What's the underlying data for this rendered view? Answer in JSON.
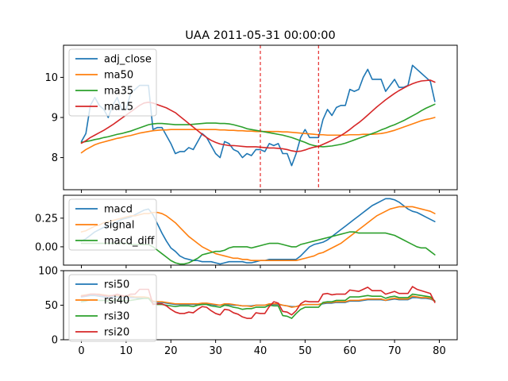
{
  "figure": {
    "title": "UAA 2011-05-31 00:00:00",
    "colors": {
      "blue": "#1f77b4",
      "orange": "#ff7f0e",
      "green": "#2ca02c",
      "red": "#d62728",
      "vline": "#e00000"
    }
  },
  "chart_data": [
    {
      "type": "line",
      "panel": "price",
      "title": "UAA 2011-05-31 00:00:00",
      "xlabel": "",
      "ylabel": "",
      "xlim": [
        -4,
        84
      ],
      "ylim": [
        7.2,
        10.8
      ],
      "yticks": [
        8,
        9,
        10
      ],
      "ytick_labels": [
        "8",
        "9",
        "10"
      ],
      "vlines": [
        40,
        53
      ],
      "legend": "top-left",
      "grid": false,
      "series": [
        {
          "name": "adj_close",
          "color": "#1f77b4",
          "values": [
            8.4,
            8.6,
            9.3,
            9.5,
            9.3,
            9.2,
            9.0,
            9.3,
            9.5,
            9.2,
            9.2,
            9.6,
            9.7,
            9.8,
            9.8,
            9.8,
            8.7,
            8.75,
            8.75,
            8.55,
            8.35,
            8.1,
            8.15,
            8.15,
            8.25,
            8.2,
            8.4,
            8.6,
            8.5,
            8.3,
            8.1,
            8.0,
            8.4,
            8.35,
            8.2,
            8.15,
            8.0,
            8.1,
            8.05,
            8.2,
            8.2,
            8.15,
            8.35,
            8.3,
            8.35,
            8.1,
            8.1,
            7.8,
            8.1,
            8.5,
            8.7,
            8.5,
            8.5,
            8.5,
            8.95,
            9.2,
            9.05,
            9.25,
            9.3,
            9.3,
            9.7,
            9.65,
            9.7,
            10.0,
            10.2,
            9.95,
            9.95,
            9.95,
            9.65,
            9.8,
            9.95,
            9.75,
            9.75,
            9.8,
            10.3,
            10.2,
            10.1,
            10.0,
            9.9,
            9.4
          ]
        },
        {
          "name": "ma50",
          "color": "#ff7f0e",
          "values": [
            8.12,
            8.2,
            8.26,
            8.32,
            8.36,
            8.39,
            8.42,
            8.45,
            8.48,
            8.5,
            8.53,
            8.55,
            8.58,
            8.61,
            8.63,
            8.65,
            8.67,
            8.68,
            8.69,
            8.69,
            8.7,
            8.7,
            8.7,
            8.7,
            8.7,
            8.7,
            8.7,
            8.7,
            8.7,
            8.7,
            8.7,
            8.69,
            8.69,
            8.68,
            8.68,
            8.67,
            8.67,
            8.66,
            8.66,
            8.65,
            8.65,
            8.65,
            8.65,
            8.65,
            8.65,
            8.64,
            8.64,
            8.63,
            8.62,
            8.61,
            8.6,
            8.59,
            8.58,
            8.57,
            8.57,
            8.56,
            8.56,
            8.56,
            8.56,
            8.56,
            8.57,
            8.57,
            8.57,
            8.58,
            8.58,
            8.58,
            8.59,
            8.6,
            8.62,
            8.65,
            8.68,
            8.72,
            8.76,
            8.8,
            8.84,
            8.88,
            8.92,
            8.95,
            8.97,
            9.0
          ]
        },
        {
          "name": "ma35",
          "color": "#2ca02c",
          "values": [
            8.38,
            8.4,
            8.42,
            8.45,
            8.47,
            8.5,
            8.52,
            8.55,
            8.58,
            8.6,
            8.63,
            8.66,
            8.7,
            8.74,
            8.78,
            8.82,
            8.84,
            8.85,
            8.85,
            8.84,
            8.83,
            8.82,
            8.82,
            8.82,
            8.82,
            8.83,
            8.84,
            8.85,
            8.86,
            8.86,
            8.86,
            8.85,
            8.85,
            8.84,
            8.82,
            8.79,
            8.76,
            8.72,
            8.7,
            8.68,
            8.66,
            8.64,
            8.62,
            8.6,
            8.58,
            8.56,
            8.53,
            8.5,
            8.46,
            8.42,
            8.38,
            8.33,
            8.3,
            8.28,
            8.27,
            8.28,
            8.29,
            8.31,
            8.33,
            8.36,
            8.4,
            8.44,
            8.48,
            8.52,
            8.56,
            8.6,
            8.64,
            8.69,
            8.73,
            8.78,
            8.82,
            8.87,
            8.92,
            8.98,
            9.04,
            9.1,
            9.17,
            9.23,
            9.28,
            9.33
          ]
        },
        {
          "name": "ma15",
          "color": "#d62728",
          "values": [
            8.36,
            8.42,
            8.5,
            8.56,
            8.62,
            8.68,
            8.75,
            8.82,
            8.9,
            8.98,
            9.06,
            9.14,
            9.22,
            9.3,
            9.36,
            9.38,
            9.36,
            9.32,
            9.28,
            9.24,
            9.18,
            9.12,
            9.03,
            8.94,
            8.85,
            8.76,
            8.67,
            8.58,
            8.5,
            8.43,
            8.38,
            8.34,
            8.32,
            8.3,
            8.3,
            8.29,
            8.28,
            8.27,
            8.27,
            8.27,
            8.26,
            8.25,
            8.24,
            8.24,
            8.23,
            8.22,
            8.2,
            8.17,
            8.15,
            8.16,
            8.19,
            8.23,
            8.26,
            8.28,
            8.33,
            8.38,
            8.43,
            8.49,
            8.55,
            8.62,
            8.7,
            8.79,
            8.87,
            8.96,
            9.06,
            9.16,
            9.26,
            9.35,
            9.44,
            9.52,
            9.6,
            9.67,
            9.73,
            9.79,
            9.84,
            9.88,
            9.91,
            9.92,
            9.93,
            9.88
          ]
        }
      ]
    },
    {
      "type": "line",
      "panel": "macd",
      "xlabel": "",
      "ylabel": "",
      "xlim": [
        -4,
        84
      ],
      "ylim": [
        -0.16,
        0.45
      ],
      "yticks": [
        0.25,
        0.0
      ],
      "ytick_labels": [
        "0.25",
        "0.00"
      ],
      "legend": "top-left",
      "grid": false,
      "series": [
        {
          "name": "macd",
          "color": "#1f77b4",
          "values": [
            0.05,
            0.07,
            0.1,
            0.13,
            0.15,
            0.17,
            0.18,
            0.2,
            0.22,
            0.24,
            0.25,
            0.26,
            0.28,
            0.3,
            0.32,
            0.33,
            0.28,
            0.2,
            0.12,
            0.05,
            -0.01,
            -0.04,
            -0.08,
            -0.1,
            -0.11,
            -0.12,
            -0.12,
            -0.13,
            -0.13,
            -0.13,
            -0.14,
            -0.15,
            -0.14,
            -0.13,
            -0.13,
            -0.13,
            -0.13,
            -0.14,
            -0.14,
            -0.13,
            -0.12,
            -0.12,
            -0.11,
            -0.11,
            -0.11,
            -0.11,
            -0.11,
            -0.11,
            -0.11,
            -0.08,
            -0.04,
            0.0,
            0.02,
            0.03,
            0.04,
            0.06,
            0.09,
            0.12,
            0.15,
            0.18,
            0.21,
            0.24,
            0.27,
            0.3,
            0.33,
            0.36,
            0.38,
            0.4,
            0.42,
            0.42,
            0.41,
            0.39,
            0.36,
            0.33,
            0.31,
            0.3,
            0.28,
            0.26,
            0.24,
            0.22
          ]
        },
        {
          "name": "signal",
          "color": "#ff7f0e",
          "values": [
            0.13,
            0.14,
            0.16,
            0.18,
            0.19,
            0.21,
            0.22,
            0.23,
            0.24,
            0.25,
            0.26,
            0.27,
            0.27,
            0.28,
            0.29,
            0.29,
            0.3,
            0.3,
            0.29,
            0.27,
            0.24,
            0.21,
            0.17,
            0.13,
            0.09,
            0.06,
            0.03,
            0.0,
            -0.02,
            -0.04,
            -0.06,
            -0.07,
            -0.08,
            -0.09,
            -0.1,
            -0.1,
            -0.11,
            -0.11,
            -0.12,
            -0.12,
            -0.12,
            -0.12,
            -0.12,
            -0.12,
            -0.12,
            -0.12,
            -0.12,
            -0.12,
            -0.12,
            -0.11,
            -0.1,
            -0.09,
            -0.08,
            -0.06,
            -0.05,
            -0.03,
            -0.01,
            0.01,
            0.03,
            0.06,
            0.09,
            0.12,
            0.15,
            0.18,
            0.21,
            0.24,
            0.27,
            0.29,
            0.31,
            0.33,
            0.34,
            0.35,
            0.35,
            0.35,
            0.35,
            0.34,
            0.33,
            0.32,
            0.31,
            0.29
          ]
        },
        {
          "name": "macd_diff",
          "color": "#2ca02c",
          "values": [
            0.03,
            0.03,
            0.03,
            0.03,
            0.03,
            0.03,
            0.03,
            0.03,
            0.03,
            0.03,
            0.03,
            0.02,
            0.02,
            0.02,
            0.02,
            0.02,
            0.0,
            -0.03,
            -0.06,
            -0.09,
            -0.12,
            -0.14,
            -0.15,
            -0.15,
            -0.14,
            -0.12,
            -0.1,
            -0.07,
            -0.06,
            -0.05,
            -0.04,
            -0.04,
            -0.03,
            -0.01,
            0.0,
            0.0,
            0.0,
            0.0,
            -0.01,
            0.0,
            0.01,
            0.02,
            0.03,
            0.03,
            0.03,
            0.02,
            0.01,
            0.0,
            0.0,
            0.02,
            0.03,
            0.04,
            0.05,
            0.06,
            0.07,
            0.08,
            0.09,
            0.1,
            0.11,
            0.12,
            0.13,
            0.13,
            0.12,
            0.12,
            0.12,
            0.12,
            0.12,
            0.12,
            0.12,
            0.11,
            0.1,
            0.08,
            0.06,
            0.04,
            0.02,
            0.0,
            -0.01,
            -0.01,
            -0.04,
            -0.07
          ]
        }
      ]
    },
    {
      "type": "line",
      "panel": "rsi",
      "xlabel": "",
      "ylabel": "",
      "xlim": [
        -4,
        84
      ],
      "ylim": [
        0,
        100
      ],
      "yticks": [
        0,
        50,
        100
      ],
      "ytick_labels": [
        "0",
        "50",
        "100"
      ],
      "xticks": [
        0,
        10,
        20,
        30,
        40,
        50,
        60,
        70,
        80
      ],
      "xtick_labels": [
        "0",
        "10",
        "20",
        "30",
        "40",
        "50",
        "60",
        "70",
        "80"
      ],
      "legend": "top-left",
      "grid": false,
      "series": [
        {
          "name": "rsi50",
          "color": "#1f77b4",
          "values": [
            62,
            63,
            64,
            64,
            63,
            62,
            62,
            62,
            62,
            62,
            61,
            61,
            61,
            60,
            60,
            60,
            55,
            54,
            54,
            53,
            52,
            51,
            51,
            51,
            51,
            51,
            51,
            52,
            52,
            51,
            50,
            50,
            51,
            51,
            50,
            50,
            49,
            49,
            49,
            50,
            50,
            50,
            51,
            51,
            51,
            50,
            49,
            48,
            48,
            50,
            51,
            51,
            51,
            51,
            52,
            53,
            53,
            54,
            54,
            54,
            56,
            56,
            56,
            57,
            58,
            58,
            58,
            58,
            57,
            58,
            59,
            58,
            58,
            58,
            61,
            61,
            60,
            60,
            59,
            56
          ]
        },
        {
          "name": "rsi40",
          "color": "#ff7f0e",
          "values": [
            64,
            65,
            66,
            66,
            66,
            65,
            64,
            64,
            64,
            63,
            63,
            63,
            62,
            62,
            62,
            61,
            56,
            55,
            55,
            54,
            53,
            52,
            52,
            52,
            52,
            52,
            52,
            53,
            53,
            52,
            51,
            50,
            52,
            52,
            51,
            50,
            49,
            49,
            48,
            50,
            50,
            50,
            52,
            52,
            52,
            50,
            49,
            47,
            48,
            50,
            51,
            51,
            51,
            51,
            53,
            54,
            54,
            55,
            55,
            55,
            57,
            57,
            57,
            58,
            59,
            59,
            59,
            59,
            57,
            59,
            60,
            59,
            59,
            59,
            63,
            62,
            61,
            61,
            60,
            56
          ]
        },
        {
          "name": "rsi30",
          "color": "#2ca02c",
          "values": [
            55,
            56,
            58,
            58,
            57,
            57,
            56,
            57,
            58,
            57,
            56,
            57,
            58,
            59,
            60,
            60,
            52,
            51,
            51,
            50,
            49,
            48,
            49,
            49,
            49,
            48,
            50,
            51,
            51,
            49,
            48,
            47,
            50,
            49,
            47,
            46,
            44,
            45,
            45,
            47,
            47,
            47,
            50,
            49,
            49,
            35,
            34,
            31,
            38,
            44,
            47,
            47,
            47,
            47,
            54,
            55,
            55,
            57,
            57,
            57,
            62,
            62,
            62,
            63,
            64,
            63,
            63,
            63,
            60,
            62,
            63,
            61,
            61,
            61,
            66,
            65,
            64,
            63,
            62,
            56
          ]
        },
        {
          "name": "rsi20",
          "color": "#d62728",
          "values": [
            63,
            64,
            66,
            66,
            65,
            64,
            63,
            64,
            66,
            64,
            63,
            66,
            66,
            73,
            73,
            73,
            51,
            52,
            52,
            49,
            44,
            40,
            38,
            38,
            40,
            39,
            44,
            48,
            47,
            42,
            38,
            36,
            44,
            43,
            39,
            37,
            33,
            31,
            31,
            39,
            38,
            38,
            48,
            55,
            53,
            41,
            40,
            36,
            42,
            52,
            56,
            55,
            55,
            55,
            66,
            67,
            65,
            66,
            66,
            66,
            72,
            71,
            70,
            73,
            76,
            71,
            71,
            71,
            66,
            68,
            70,
            67,
            67,
            67,
            77,
            73,
            71,
            69,
            67,
            54
          ]
        }
      ]
    }
  ]
}
